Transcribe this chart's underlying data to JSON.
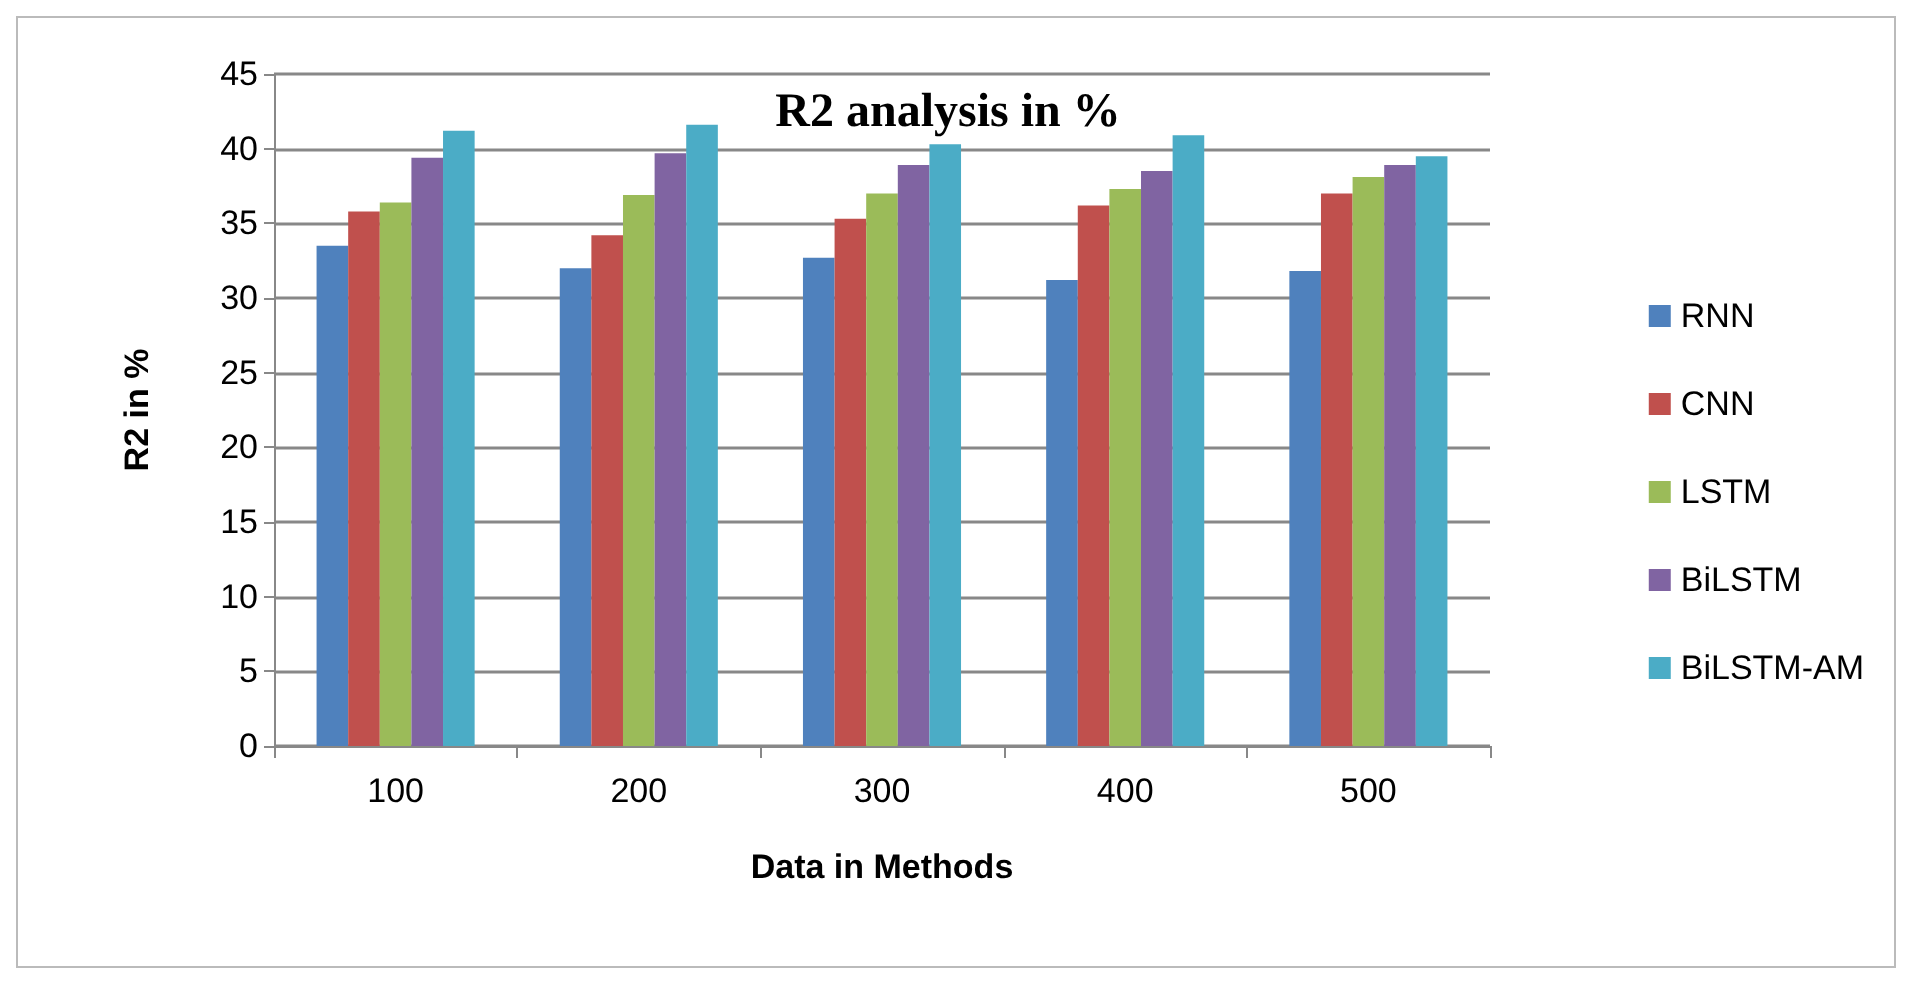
{
  "chart_data": {
    "type": "bar",
    "title": "R2 analysis in %",
    "xlabel": "Data in Methods",
    "ylabel": "R2 in %",
    "categories": [
      "100",
      "200",
      "300",
      "400",
      "500"
    ],
    "series": [
      {
        "name": "RNN",
        "color": "#4f81bd",
        "values": [
          33.5,
          32.0,
          32.7,
          31.2,
          31.8
        ]
      },
      {
        "name": "CNN",
        "color": "#c0504d",
        "values": [
          35.8,
          34.2,
          35.3,
          36.2,
          37.0
        ]
      },
      {
        "name": "LSTM",
        "color": "#9bbb59",
        "values": [
          36.4,
          36.9,
          37.0,
          37.3,
          38.1
        ]
      },
      {
        "name": "BiLSTM",
        "color": "#8064a2",
        "values": [
          39.4,
          39.7,
          38.9,
          38.5,
          38.9
        ]
      },
      {
        "name": "BiLSTM-AM",
        "color": "#4bacc6",
        "values": [
          41.2,
          41.6,
          40.3,
          40.9,
          39.5
        ]
      }
    ],
    "ylim": [
      0,
      45
    ],
    "yticks": [
      0,
      5,
      10,
      15,
      20,
      25,
      30,
      35,
      40,
      45
    ],
    "grid": "y",
    "legend": "right"
  }
}
